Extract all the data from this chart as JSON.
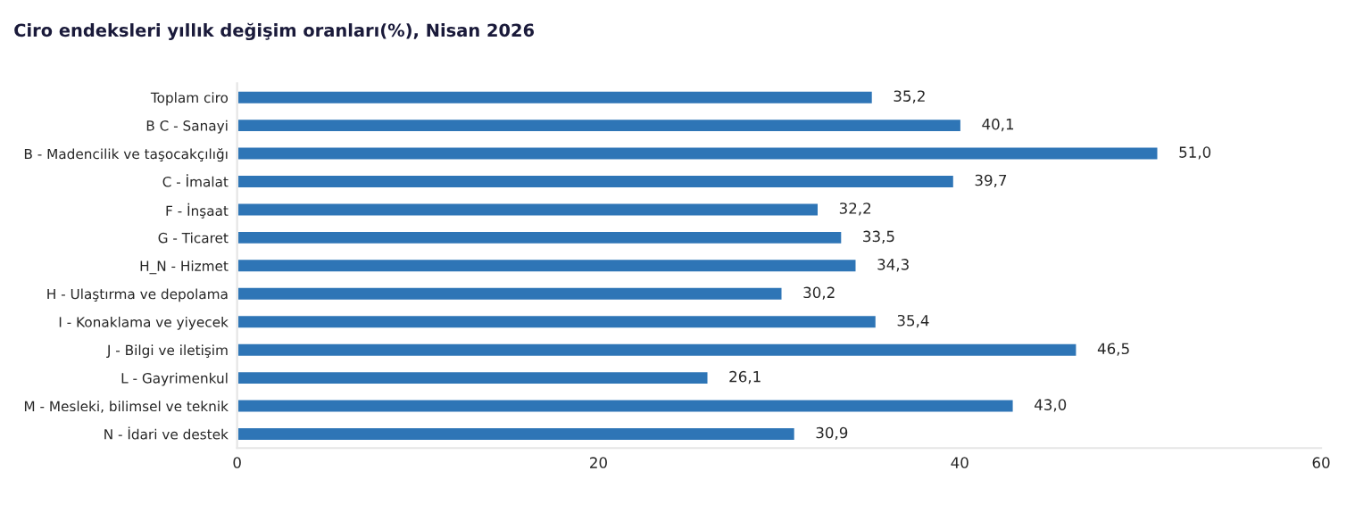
{
  "chart_data": {
    "type": "bar",
    "orientation": "horizontal",
    "title": "Ciro endeksleri yıllık değişim oranları(%), Nisan 2026",
    "categories": [
      "Toplam ciro",
      "B C - Sanayi",
      "B - Madencilik ve taşocakçılığı",
      "C - İmalat",
      "F - İnşaat",
      "G - Ticaret",
      "H_N - Hizmet",
      "H - Ulaştırma ve depolama",
      "I - Konaklama ve yiyecek",
      "J - Bilgi ve iletişim",
      "L - Gayrimenkul",
      "M - Mesleki, bilimsel ve teknik",
      "N - İdari ve destek"
    ],
    "values": [
      35.2,
      40.1,
      51.0,
      39.7,
      32.2,
      33.5,
      34.3,
      30.2,
      35.4,
      46.5,
      26.1,
      43.0,
      30.9
    ],
    "value_labels": [
      "35,2",
      "40,1",
      "51,0",
      "39,7",
      "32,2",
      "33,5",
      "34,3",
      "30,2",
      "35,4",
      "46,5",
      "26,1",
      "43,0",
      "30,9"
    ],
    "color": "#2e75b6",
    "xlim": [
      0,
      60
    ],
    "xticks": [
      0,
      20,
      40,
      60
    ],
    "grid": false
  }
}
